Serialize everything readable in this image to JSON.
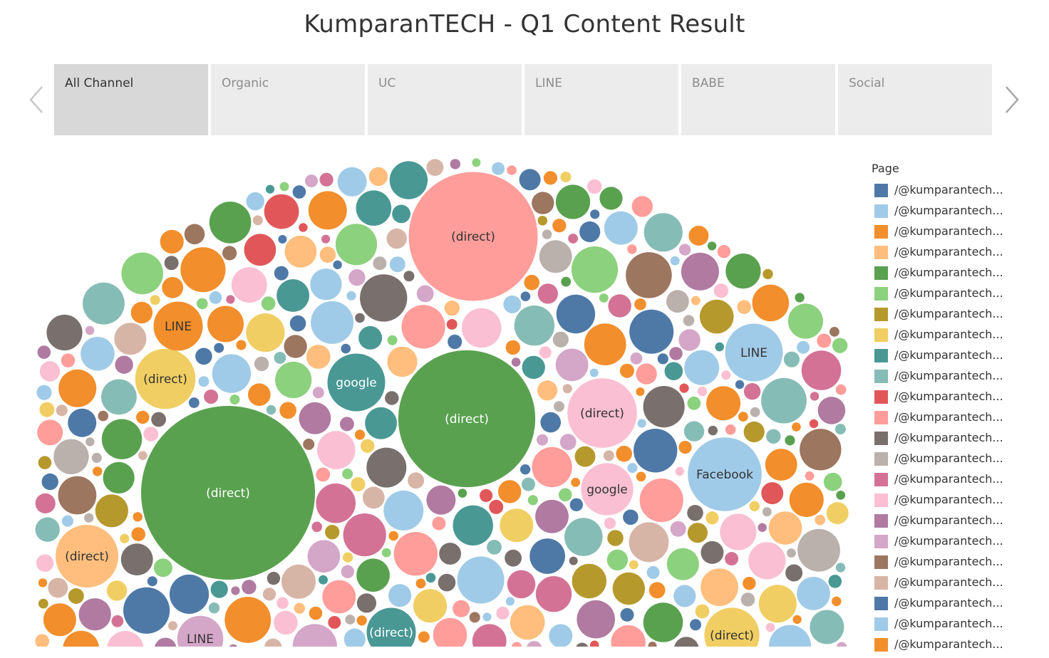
{
  "title": "KumparanTECH - Q1 Content Result",
  "tabs": [
    {
      "label": "All Channel",
      "active": true
    },
    {
      "label": "Organic",
      "active": false
    },
    {
      "label": "UC",
      "active": false
    },
    {
      "label": "LINE",
      "active": false
    },
    {
      "label": "BABE",
      "active": false
    },
    {
      "label": "Social",
      "active": false
    }
  ],
  "icons": {
    "prev": "chevron-left-icon",
    "next": "chevron-right-icon"
  },
  "legend": {
    "title": "Page",
    "items": [
      {
        "label": "/@kumparantech...",
        "color": "#4e79a7"
      },
      {
        "label": "/@kumparantech...",
        "color": "#a0cbe8"
      },
      {
        "label": "/@kumparantech...",
        "color": "#f28e2b"
      },
      {
        "label": "/@kumparantech...",
        "color": "#ffbe7d"
      },
      {
        "label": "/@kumparantech...",
        "color": "#59a14f"
      },
      {
        "label": "/@kumparantech...",
        "color": "#8cd17d"
      },
      {
        "label": "/@kumparantech...",
        "color": "#b6992d"
      },
      {
        "label": "/@kumparantech...",
        "color": "#f1ce63"
      },
      {
        "label": "/@kumparantech...",
        "color": "#499894"
      },
      {
        "label": "/@kumparantech...",
        "color": "#86bcb6"
      },
      {
        "label": "/@kumparantech...",
        "color": "#e15759"
      },
      {
        "label": "/@kumparantech...",
        "color": "#ff9d9a"
      },
      {
        "label": "/@kumparantech...",
        "color": "#79706e"
      },
      {
        "label": "/@kumparantech...",
        "color": "#bab0ac"
      },
      {
        "label": "/@kumparantech...",
        "color": "#d37295"
      },
      {
        "label": "/@kumparantech...",
        "color": "#fabfd2"
      },
      {
        "label": "/@kumparantech...",
        "color": "#b07aa1"
      },
      {
        "label": "/@kumparantech...",
        "color": "#d4a6c8"
      },
      {
        "label": "/@kumparantech...",
        "color": "#9d7660"
      },
      {
        "label": "/@kumparantech...",
        "color": "#d7b5a6"
      },
      {
        "label": "/@kumparantech...",
        "color": "#4e79a7"
      },
      {
        "label": "/@kumparantech...",
        "color": "#a0cbe8"
      },
      {
        "label": "/@kumparantech...",
        "color": "#f28e2b"
      }
    ]
  },
  "chart_data": {
    "type": "bubble",
    "labeled_bubbles": [
      {
        "label": "(direct)",
        "color": "#59a14f",
        "value": 100
      },
      {
        "label": "(direct)",
        "color": "#59a14f",
        "value": 62
      },
      {
        "label": "(direct)",
        "color": "#ff9d9a",
        "value": 55
      },
      {
        "label": "(direct)",
        "color": "#fabfd2",
        "value": 16
      },
      {
        "label": "(direct)",
        "color": "#f1ce63",
        "value": 12
      },
      {
        "label": "(direct)",
        "color": "#ffbe7d",
        "value": 13
      },
      {
        "label": "(direct)",
        "color": "#499894",
        "value": 8
      },
      {
        "label": "(direct)",
        "color": "#f1ce63",
        "value": 10
      },
      {
        "label": "google",
        "color": "#499894",
        "value": 11
      },
      {
        "label": "google",
        "color": "#fabfd2",
        "value": 9
      },
      {
        "label": "LINE",
        "color": "#f28e2b",
        "value": 8
      },
      {
        "label": "LINE",
        "color": "#a0cbe8",
        "value": 11
      },
      {
        "label": "LINE",
        "color": "#d4a6c8",
        "value": 7
      },
      {
        "label": "Facebook",
        "color": "#a0cbe8",
        "value": 18
      }
    ]
  }
}
